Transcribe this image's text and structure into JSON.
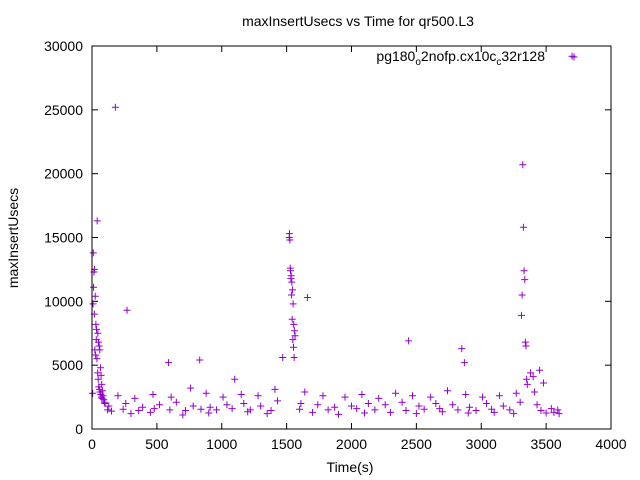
{
  "chart_data": {
    "type": "scatter",
    "title": "maxInsertUsecs vs Time for qr500.L3",
    "xlabel": "Time(s)",
    "ylabel": "maxInsertUsecs",
    "xlim": [
      0,
      4000
    ],
    "ylim": [
      0,
      30000
    ],
    "x_ticks": [
      0,
      500,
      1000,
      1500,
      2000,
      2500,
      3000,
      3500,
      4000
    ],
    "y_ticks": [
      0,
      5000,
      10000,
      15000,
      20000,
      25000,
      30000
    ],
    "grid": false,
    "legend_position": "top-right",
    "marker": "plus",
    "series": [
      {
        "name": "pg180_o2nofp.cx10c_c32r128",
        "name_main": "pg180",
        "name_sub1": "o",
        "name_mid": "2nofp.cx10c",
        "name_sub2": "c",
        "name_end": "32r128",
        "color": "#9400d3",
        "x": [
          5,
          10,
          15,
          20,
          25,
          30,
          35,
          40,
          45,
          50,
          55,
          60,
          65,
          70,
          75,
          80,
          85,
          90,
          95,
          100,
          8,
          12,
          18,
          22,
          28,
          33,
          38,
          44,
          48,
          52,
          58,
          62,
          68,
          72,
          78,
          180,
          270,
          590,
          830,
          1100,
          1520,
          1525,
          1530,
          1535,
          1540,
          1545,
          1550,
          1555,
          1560,
          1565,
          1522,
          1528,
          1533,
          1538,
          1543,
          1548,
          1553,
          1558,
          1470,
          1660,
          2440,
          2850,
          2870,
          3310,
          3315,
          3320,
          3325,
          3330,
          3335,
          3340,
          3345,
          3350,
          3355,
          3380,
          3400,
          3450,
          3480,
          150,
          300,
          450,
          700,
          900,
          1200,
          1350,
          1700,
          1900,
          2100,
          2300,
          2500,
          2700,
          2900,
          3100,
          3250,
          3500,
          3600,
          130,
          260,
          390,
          520,
          650,
          780,
          910,
          1040,
          1170,
          1300,
          1430,
          1610,
          1740,
          1870,
          2000,
          2130,
          2260,
          2390,
          2520,
          2650,
          2780,
          2910,
          3040,
          3170,
          3300,
          3430,
          3560,
          200,
          330,
          470,
          610,
          760,
          880,
          1010,
          1150,
          1280,
          1410,
          1640,
          1780,
          1950,
          2080,
          2210,
          2340,
          2470,
          2610,
          2740,
          2880,
          3010,
          3140,
          3270,
          3410,
          3540,
          120,
          240,
          360,
          480,
          600,
          720,
          840,
          960,
          1080,
          1220,
          1380,
          1600,
          1820,
          2040,
          2180,
          2420,
          2560,
          2680,
          2820,
          2960,
          3080,
          3220,
          3460,
          3590
        ],
        "y": [
          2800,
          13800,
          12300,
          12500,
          10400,
          8200,
          7800,
          16300,
          7500,
          6800,
          6500,
          6200,
          4800,
          4200,
          3500,
          3000,
          2600,
          2300,
          2100,
          2000,
          9800,
          11100,
          9000,
          6200,
          5800,
          7000,
          5500,
          4400,
          3900,
          3300,
          3100,
          2900,
          2700,
          2500,
          2400,
          25200,
          9300,
          5200,
          5400,
          3900,
          15000,
          14800,
          12400,
          12000,
          11500,
          10900,
          9800,
          8200,
          7700,
          7300,
          15300,
          12600,
          11800,
          10500,
          8600,
          7000,
          6400,
          5600,
          5600,
          10300,
          6900,
          6300,
          5200,
          8900,
          10500,
          20700,
          15800,
          12400,
          11700,
          6800,
          6500,
          3900,
          3500,
          4400,
          4100,
          4600,
          3600,
          1400,
          1200,
          1300,
          1100,
          1250,
          1350,
          1200,
          1300,
          1150,
          1250,
          1300,
          1200,
          1350,
          1250,
          1300,
          1200,
          1250,
          1200,
          1800,
          2000,
          1700,
          1900,
          2100,
          1800,
          1700,
          1900,
          2000,
          1800,
          2200,
          2000,
          1900,
          1700,
          1800,
          2000,
          1900,
          2100,
          1800,
          2000,
          1900,
          1700,
          2000,
          1800,
          2100,
          1900,
          1300,
          2600,
          2400,
          2700,
          2500,
          3200,
          2800,
          2500,
          2700,
          2600,
          3100,
          2900,
          2600,
          2500,
          2700,
          2400,
          2800,
          2600,
          2500,
          3000,
          2700,
          2500,
          2600,
          2800,
          2900,
          1600,
          1500,
          1550,
          1450,
          1600,
          1500,
          1450,
          1550,
          1500,
          1600,
          1500,
          1450,
          1550,
          1500,
          1600,
          1500,
          1450,
          1550,
          1600,
          1500,
          1450,
          1550,
          1500,
          1450,
          1500
        ],
        "outlier_point": [
          3700,
          29200
        ]
      }
    ]
  }
}
